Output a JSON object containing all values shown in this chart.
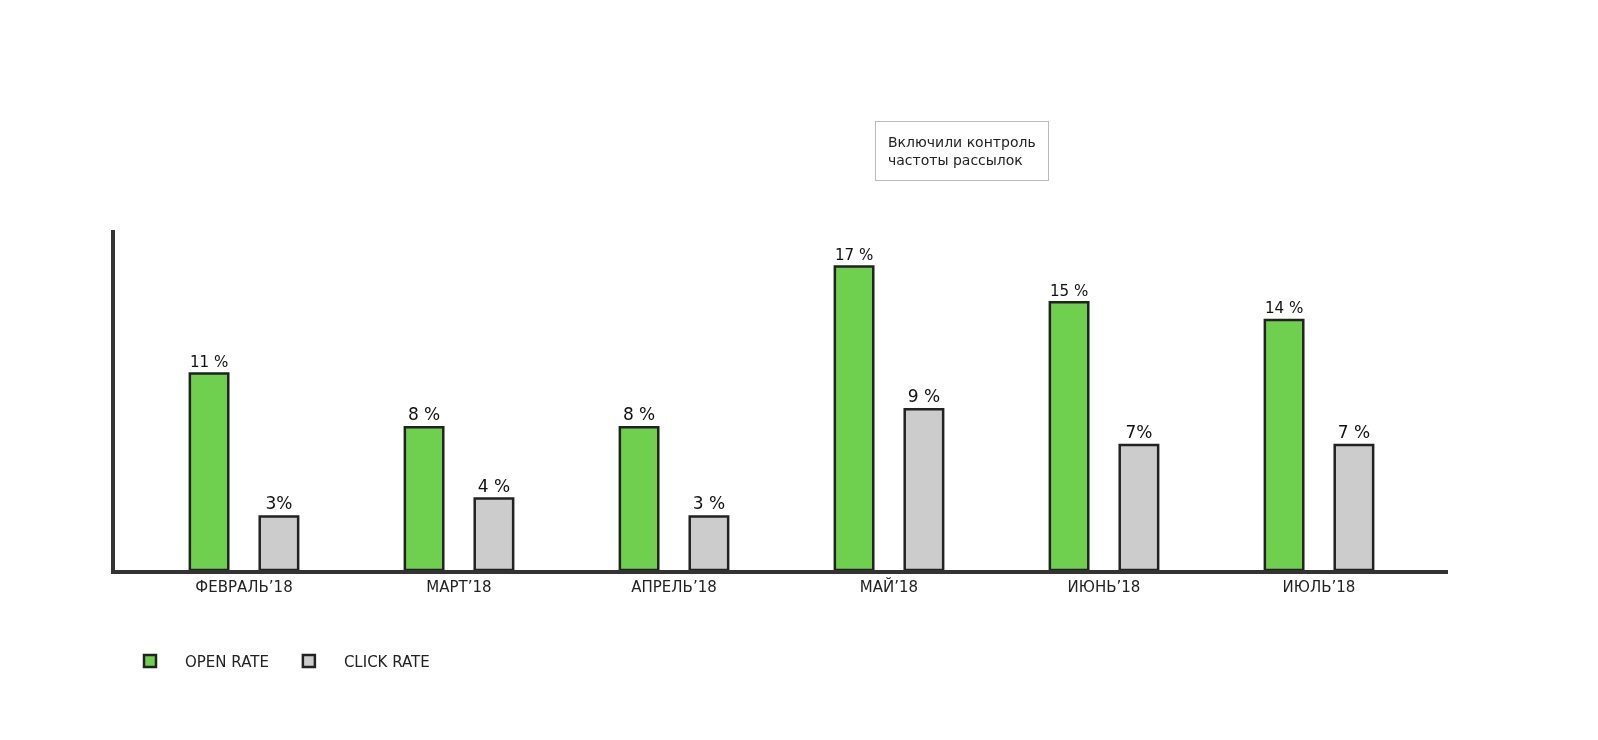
{
  "chart_data": {
    "type": "bar",
    "categories": [
      "ФЕВРАЛЬ’18",
      "МАРТ’18",
      "АПРЕЛЬ’18",
      "МАЙ’18",
      "ИЮНЬ’18",
      "ИЮЛЬ’18"
    ],
    "series": [
      {
        "name": "OPEN RATE",
        "color": "#6fcf4f",
        "values": [
          11,
          8,
          8,
          17,
          15,
          14
        ],
        "value_labels": [
          "11 %",
          "8 %",
          "8 %",
          "17 %",
          "15 %",
          "14 %"
        ]
      },
      {
        "name": "CLICK RATE",
        "color": "#cccccc",
        "values": [
          3,
          4,
          3,
          9,
          7,
          7
        ],
        "value_labels": [
          "3%",
          "4 %",
          "3 %",
          "9 %",
          "7%",
          "7 %"
        ]
      }
    ],
    "annotations": [
      "Включили контроль частоты рассылок"
    ],
    "legend": "bottom left"
  }
}
